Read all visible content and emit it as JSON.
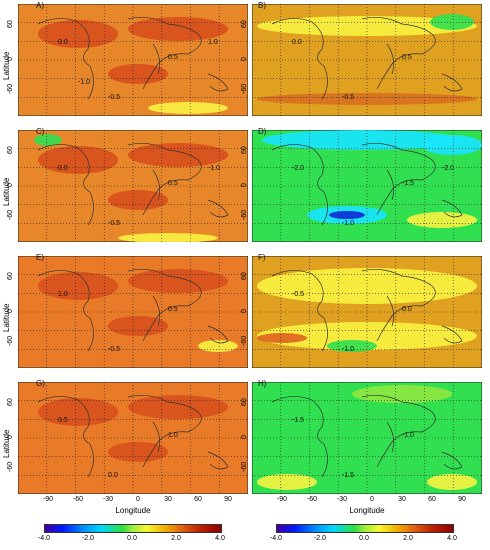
{
  "panels": [
    {
      "id": "A",
      "label": "A)",
      "field": "#e8862a",
      "contours": [
        {
          "t": "0.0"
        },
        {
          "t": "0.5"
        },
        {
          "t": "-0.5"
        },
        {
          "t": "1.0"
        },
        {
          "t": "-1.0"
        }
      ]
    },
    {
      "id": "B",
      "label": "B)",
      "field": "#e0a020",
      "contours": [
        {
          "t": "0.0"
        },
        {
          "t": "0.5"
        },
        {
          "t": "-0.5"
        }
      ]
    },
    {
      "id": "C",
      "label": "C)",
      "field": "#e8862a",
      "contours": [
        {
          "t": "0.0"
        },
        {
          "t": "0.5"
        },
        {
          "t": "-0.5"
        },
        {
          "t": "-1.0"
        }
      ]
    },
    {
      "id": "D",
      "label": "D)",
      "field": "#30e050",
      "contours": [
        {
          "t": "-2.0"
        },
        {
          "t": "-1.5"
        },
        {
          "t": "-1.0"
        },
        {
          "t": "-2.0"
        }
      ]
    },
    {
      "id": "E",
      "label": "E)",
      "field": "#e87a28",
      "contours": [
        {
          "t": "1.0"
        },
        {
          "t": "0.5"
        },
        {
          "t": "-0.5"
        }
      ]
    },
    {
      "id": "F",
      "label": "F)",
      "field": "#e0a020",
      "contours": [
        {
          "t": "-0.5"
        },
        {
          "t": "0.0"
        },
        {
          "t": "-1.0"
        }
      ]
    },
    {
      "id": "G",
      "label": "G)",
      "field": "#e87a28",
      "contours": [
        {
          "t": "0.5"
        },
        {
          "t": "1.0"
        },
        {
          "t": "0.0"
        }
      ]
    },
    {
      "id": "H",
      "label": "H)",
      "field": "#30e050",
      "contours": [
        {
          "t": "-1.5"
        },
        {
          "t": "-1.0"
        },
        {
          "t": "-1.5"
        }
      ]
    }
  ],
  "axes": {
    "ylabel": "Latitude",
    "xlabel": "Longitude",
    "yticks": [
      "60",
      "0",
      "-60"
    ],
    "xticks": [
      "-90",
      "-60",
      "-30",
      "0",
      "30",
      "60",
      "90"
    ]
  },
  "colorbar": {
    "ticks": [
      "-4.0",
      "-2.0",
      "0.0",
      "2.0",
      "4.0"
    ],
    "range": [
      -4.0,
      4.0
    ]
  },
  "colors": {
    "warm_strong": "#d8501c",
    "warm": "#e8862a",
    "yellow": "#f8f240",
    "green": "#30e050",
    "cyan": "#18e6ff",
    "blue": "#1028d8"
  }
}
